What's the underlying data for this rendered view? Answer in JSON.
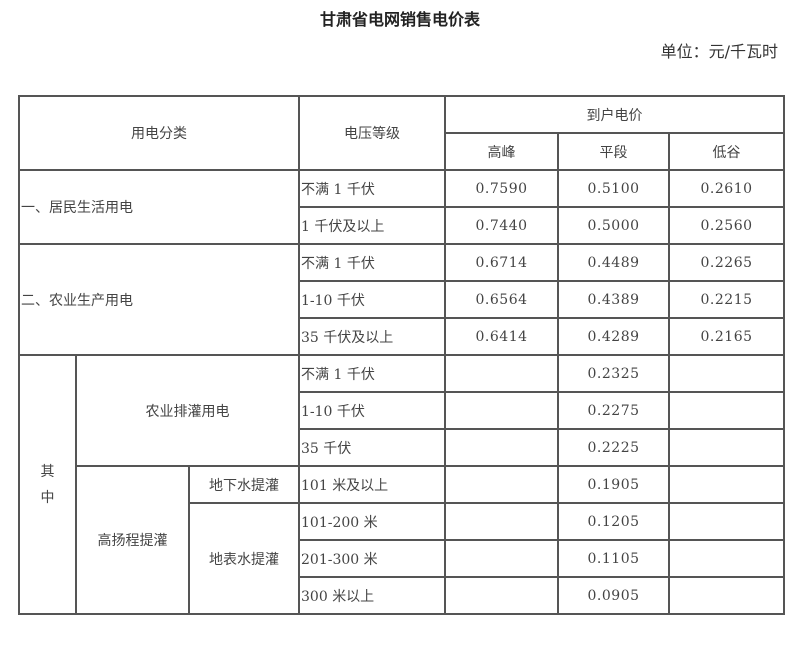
{
  "title": "甘肃省电网销售电价表",
  "unit": "单位：元/千瓦时",
  "table": {
    "headers": {
      "category": "用电分类",
      "voltage": "电压等级",
      "price": "到户电价",
      "peak": "高峰",
      "flat": "平段",
      "valley": "低谷"
    },
    "residential": {
      "label": "一、居民生活用电",
      "rows": [
        {
          "voltage": "不满 1 千伏",
          "peak": "0.7590",
          "flat": "0.5100",
          "valley": "0.2610"
        },
        {
          "voltage": "1 千伏及以上",
          "peak": "0.7440",
          "flat": "0.5000",
          "valley": "0.2560"
        }
      ]
    },
    "agriculture": {
      "label": "二、农业生产用电",
      "rows": [
        {
          "voltage": "不满 1 千伏",
          "peak": "0.6714",
          "flat": "0.4489",
          "valley": "0.2265"
        },
        {
          "voltage": "1-10 千伏",
          "peak": "0.6564",
          "flat": "0.4389",
          "valley": "0.2215"
        },
        {
          "voltage": "35 千伏及以上",
          "peak": "0.6414",
          "flat": "0.4289",
          "valley": "0.2165"
        }
      ]
    },
    "of_which": {
      "label_1": "其",
      "label_2": "中",
      "irrigation": {
        "label": "农业排灌用电",
        "rows": [
          {
            "voltage": "不满 1 千伏",
            "flat": "0.2325"
          },
          {
            "voltage": "1-10 千伏",
            "flat": "0.2275"
          },
          {
            "voltage": "35 千伏",
            "flat": "0.2225"
          }
        ]
      },
      "high_lift": {
        "label": "高扬程提灌",
        "groundwater": {
          "label": "地下水提灌",
          "rows": [
            {
              "voltage": "101 米及以上",
              "flat": "0.1905"
            }
          ]
        },
        "surface": {
          "label": "地表水提灌",
          "rows": [
            {
              "voltage": "101-200 米",
              "flat": "0.1205"
            },
            {
              "voltage": "201-300 米",
              "flat": "0.1105"
            },
            {
              "voltage": "300 米以上",
              "flat": "0.0905"
            }
          ]
        }
      }
    }
  }
}
